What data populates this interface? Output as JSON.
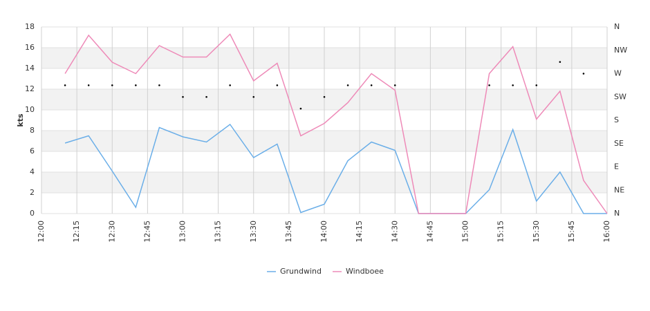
{
  "chart_data": {
    "type": "line",
    "ylabel": "kts",
    "x": [
      "12:10",
      "12:20",
      "12:30",
      "12:40",
      "12:50",
      "13:00",
      "13:10",
      "13:20",
      "13:30",
      "13:40",
      "13:50",
      "14:00",
      "14:10",
      "14:20",
      "14:30",
      "14:40",
      "14:50",
      "15:00",
      "15:10",
      "15:20",
      "15:30",
      "15:40",
      "15:50",
      "16:00"
    ],
    "xlim": [
      "12:00",
      "16:00"
    ],
    "xticks": [
      "12:00",
      "12:15",
      "12:30",
      "12:45",
      "13:00",
      "13:15",
      "13:30",
      "13:45",
      "14:00",
      "14:15",
      "14:30",
      "14:45",
      "15:00",
      "15:15",
      "15:30",
      "15:45",
      "16:00"
    ],
    "ylim": [
      0,
      18
    ],
    "yticks": [
      0,
      2,
      4,
      6,
      8,
      10,
      12,
      14,
      16,
      18
    ],
    "y2lim": [
      0,
      360
    ],
    "y2ticks": [
      {
        "value": 0,
        "label": "N"
      },
      {
        "value": 45,
        "label": "NE"
      },
      {
        "value": 90,
        "label": "E"
      },
      {
        "value": 135,
        "label": "SE"
      },
      {
        "value": 180,
        "label": "S"
      },
      {
        "value": 225,
        "label": "SW"
      },
      {
        "value": 270,
        "label": "W"
      },
      {
        "value": 315,
        "label": "NW"
      },
      {
        "value": 360,
        "label": "N"
      }
    ],
    "grid": true,
    "legend": "bottom",
    "series": [
      {
        "name": "Grundwind",
        "color": "#6aaee8",
        "values": [
          6.8,
          7.5,
          4.1,
          0.6,
          8.3,
          7.4,
          6.9,
          8.6,
          5.4,
          6.7,
          0.1,
          0.9,
          5.1,
          6.9,
          6.1,
          0,
          0,
          0,
          2.3,
          8.1,
          1.2,
          4.0,
          0,
          0
        ]
      },
      {
        "name": "Windboee",
        "color": "#ee8ab8",
        "values": [
          13.5,
          17.2,
          14.6,
          13.5,
          16.2,
          15.1,
          15.1,
          17.3,
          12.8,
          14.5,
          7.5,
          8.7,
          10.7,
          13.5,
          11.9,
          0,
          0,
          0,
          13.5,
          16.1,
          9.1,
          11.8,
          3.2,
          0
        ]
      }
    ],
    "direction": {
      "axis": "y2",
      "color": "#000000",
      "values": [
        247.5,
        247.5,
        247.5,
        247.5,
        247.5,
        225,
        225,
        247.5,
        225,
        247.5,
        202.5,
        225,
        247.5,
        247.5,
        247.5,
        null,
        null,
        null,
        247.5,
        247.5,
        247.5,
        292.5,
        270,
        null
      ]
    }
  }
}
